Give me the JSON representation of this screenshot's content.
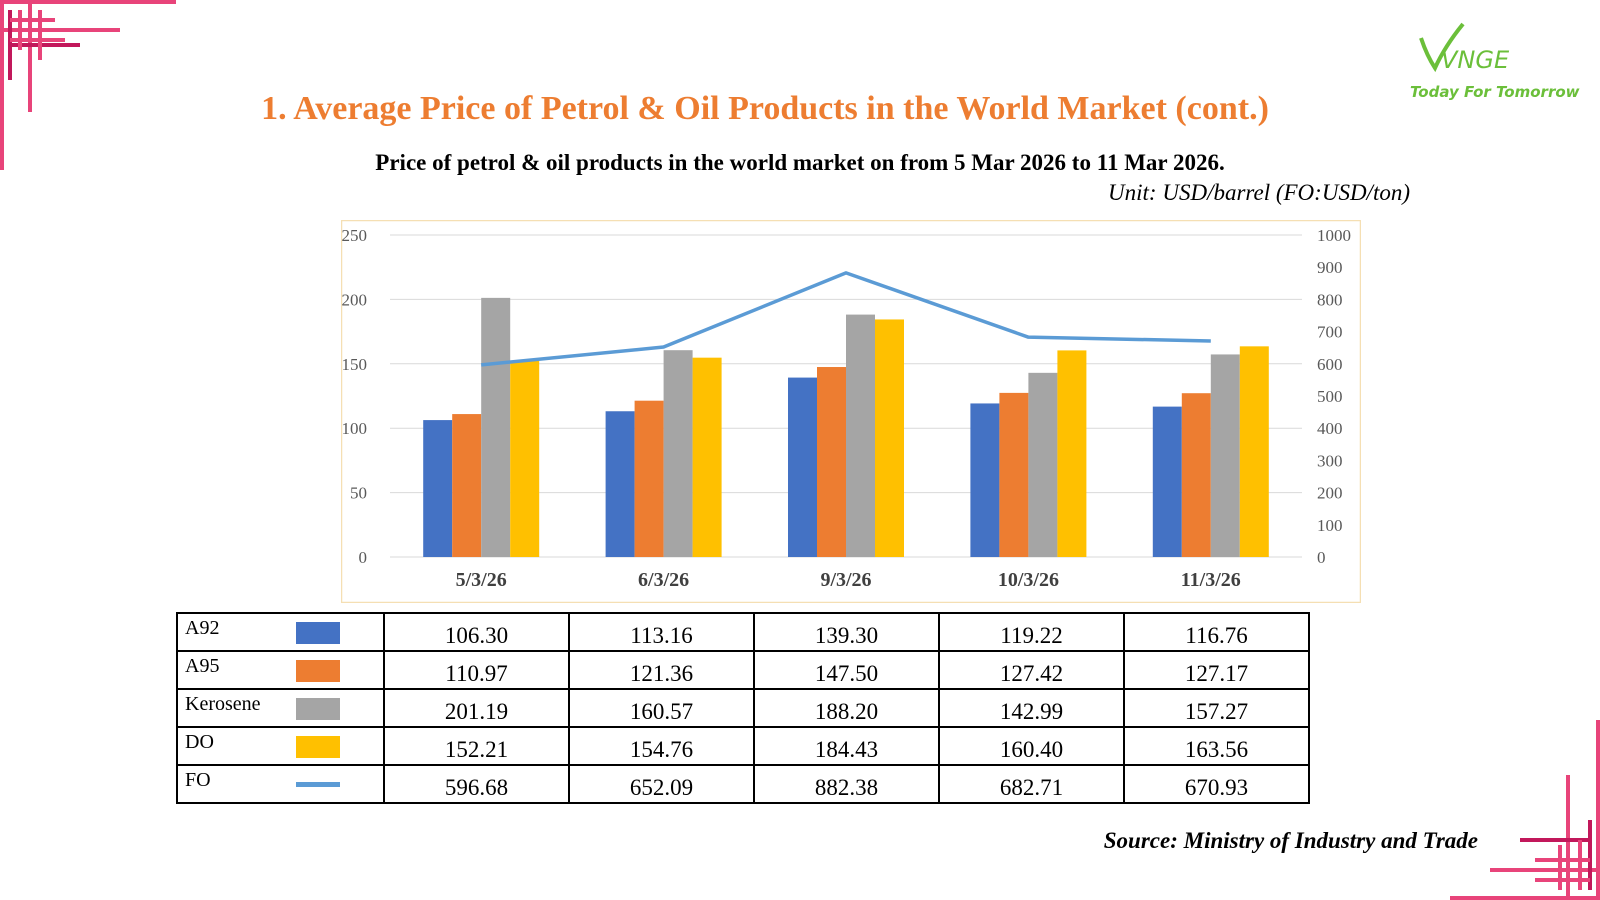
{
  "header": {
    "title": "1. Average Price of Petrol & Oil Products in the World Market (cont.)",
    "subtitle": "Price of petrol & oil products in the world market on from 5 Mar 2026 to 11 Mar 2026.",
    "unit": "Unit: USD/barrel (FO:USD/ton)"
  },
  "logo": {
    "text": "VNGE",
    "tagline": "Today For Tomorrow"
  },
  "source": "Source: Ministry of Industry and Trade",
  "colors": {
    "title": "#ed7d31",
    "A92": "#4472c4",
    "A95": "#ed7d31",
    "Kerosene": "#a5a5a5",
    "DO": "#ffc000",
    "FO": "#5b9bd5",
    "frame": "#e8447a"
  },
  "chart_data": {
    "type": "bar",
    "categories": [
      "5/3/26",
      "6/3/26",
      "9/3/26",
      "10/3/26",
      "11/3/26"
    ],
    "series": [
      {
        "name": "A92",
        "type": "bar",
        "axis": "left",
        "values": [
          106.3,
          113.16,
          139.3,
          119.22,
          116.76
        ]
      },
      {
        "name": "A95",
        "type": "bar",
        "axis": "left",
        "values": [
          110.97,
          121.36,
          147.5,
          127.42,
          127.17
        ]
      },
      {
        "name": "Kerosene",
        "type": "bar",
        "axis": "left",
        "values": [
          201.19,
          160.57,
          188.2,
          142.99,
          157.27
        ]
      },
      {
        "name": "DO",
        "type": "bar",
        "axis": "left",
        "values": [
          152.21,
          154.76,
          184.43,
          160.4,
          163.56
        ]
      },
      {
        "name": "FO",
        "type": "line",
        "axis": "right",
        "values": [
          596.68,
          652.09,
          882.38,
          682.71,
          670.93
        ]
      }
    ],
    "ylim": [
      0,
      250
    ],
    "y2lim": [
      0,
      1000
    ],
    "yticks": [
      0,
      50,
      100,
      150,
      200,
      250
    ],
    "y2ticks": [
      0,
      100,
      200,
      300,
      400,
      500,
      600,
      700,
      800,
      900,
      1000
    ],
    "grid": true,
    "legend": "data-table below chart"
  },
  "table": {
    "rows": [
      {
        "name": "A92",
        "values": [
          "106.30",
          "113.16",
          "139.30",
          "119.22",
          "116.76"
        ]
      },
      {
        "name": "A95",
        "values": [
          "110.97",
          "121.36",
          "147.50",
          "127.42",
          "127.17"
        ]
      },
      {
        "name": "Kerosene",
        "values": [
          "201.19",
          "160.57",
          "188.20",
          "142.99",
          "157.27"
        ]
      },
      {
        "name": "DO",
        "values": [
          "152.21",
          "154.76",
          "184.43",
          "160.40",
          "163.56"
        ]
      },
      {
        "name": "FO",
        "values": [
          "596.68",
          "652.09",
          "882.38",
          "682.71",
          "670.93"
        ]
      }
    ]
  }
}
